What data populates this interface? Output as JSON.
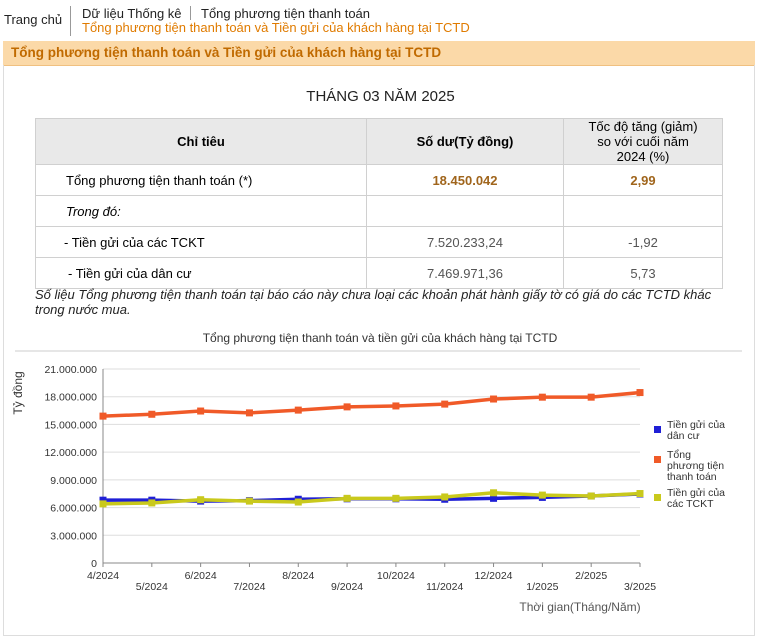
{
  "breadcrumb": {
    "home": "Trang chủ",
    "section": "Dữ liệu Thống kê",
    "page": "Tổng phương tiện thanh toán",
    "current": "Tổng phương tiện thanh toán và Tiền gửi của khách hàng tại TCTD"
  },
  "header": {
    "title": "Tổng phương tiện thanh toán và Tiền gửi của khách hàng tại TCTD"
  },
  "period": "THÁNG 03 NĂM 2025",
  "table": {
    "columns": [
      "Chỉ tiêu",
      "Số dư(Tỷ đồng)",
      "Tốc độ tăng (giảm) so với cuối năm 2024 (%)"
    ],
    "rows": [
      [
        "Tổng phương tiện thanh toán (*)",
        "18.450.042",
        "2,99"
      ],
      [
        "Trong đó:",
        "",
        ""
      ],
      [
        "- Tiền gửi của các TCKT",
        "7.520.233,24",
        "-1,92"
      ],
      [
        "- Tiền gửi của dân cư",
        "7.469.971,36",
        "5,73"
      ]
    ]
  },
  "note": "Số liệu Tổng phương tiện thanh toán tại báo cáo này chưa loại các khoản phát hành giấy tờ có giá do các TCTD khác trong nước mua.",
  "chart_data": {
    "type": "line",
    "title": "Tổng phương tiện thanh toán và tiền gửi của khách hàng tại TCTD",
    "x_label": "Thời gian(Tháng/Năm)",
    "y_label": "Tỷ đồng",
    "categories": [
      "4/2024",
      "5/2024",
      "6/2024",
      "7/2024",
      "8/2024",
      "9/2024",
      "10/2024",
      "11/2024",
      "12/2024",
      "1/2025",
      "2/2025",
      "3/2025"
    ],
    "series": [
      {
        "name": "Tiền gửi của dân cư",
        "color": "#1f1fd6",
        "values": [
          6800000,
          6800000,
          6700000,
          6750000,
          6900000,
          6950000,
          6950000,
          6900000,
          7000000,
          7100000,
          7250000,
          7469971
        ]
      },
      {
        "name": "Tổng phương tiện thanh toán",
        "color": "#f05a28",
        "values": [
          15900000,
          16100000,
          16450000,
          16250000,
          16550000,
          16900000,
          17000000,
          17200000,
          17750000,
          17950000,
          17950000,
          18450042
        ]
      },
      {
        "name": "Tiền gửi của các TCKT",
        "color": "#c9c91c",
        "values": [
          6400000,
          6500000,
          6850000,
          6700000,
          6600000,
          7000000,
          7000000,
          7150000,
          7600000,
          7350000,
          7250000,
          7520233
        ]
      }
    ],
    "ylim": [
      0,
      21000000
    ],
    "yticks": [
      0,
      {
        "value": 3000000,
        "label": "3.000.000"
      },
      {
        "value": 6000000,
        "label": "6.000.000"
      },
      {
        "value": 9000000,
        "label": "9.000.000"
      },
      {
        "value": 12000000,
        "label": "12.000.000"
      },
      {
        "value": 15000000,
        "label": "15.000.000"
      },
      {
        "value": 18000000,
        "label": "18.000.000"
      },
      {
        "value": 21000000,
        "label": "21.000.000"
      }
    ],
    "grid": true
  }
}
